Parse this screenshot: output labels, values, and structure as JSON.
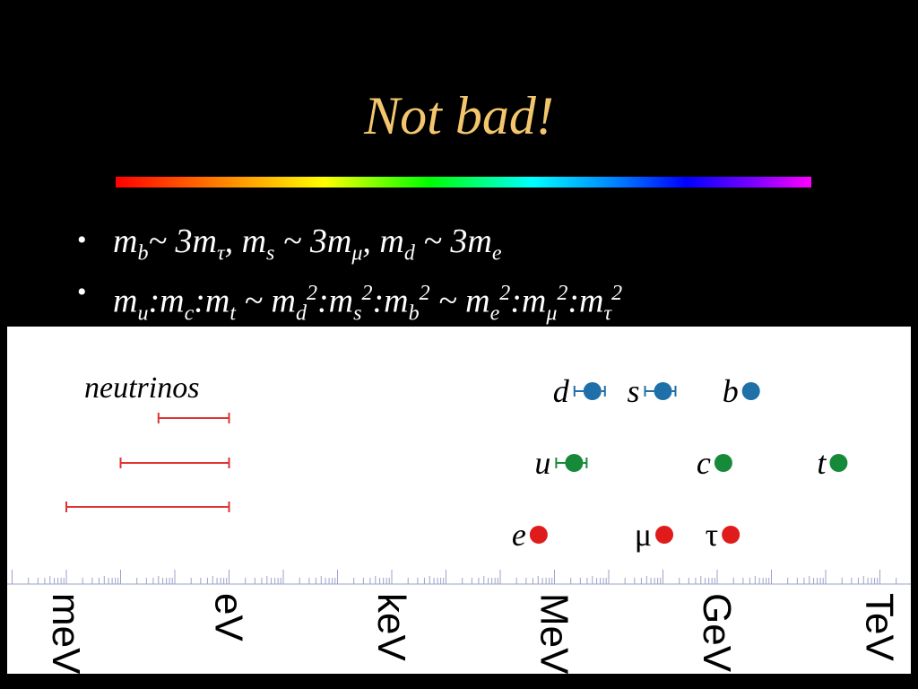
{
  "title": "Not bad!",
  "bullets": [
    {
      "marker": "•",
      "base": [
        "m",
        "~ 3m",
        ", m",
        " ~ 3m",
        ", m",
        " ~ 3m"
      ],
      "subs": [
        "b",
        "τ",
        "s",
        "μ",
        "d",
        "e"
      ]
    },
    {
      "marker": "•",
      "text": "mu:mc:mt ~ md2:ms2:mb2 ~ me2:mμ2:mτ2"
    }
  ],
  "chart_data": {
    "type": "scatter",
    "x_axis": {
      "scale": "log",
      "unit": "eV",
      "tick_labels": [
        "meV",
        "eV",
        "keV",
        "MeV",
        "GeV",
        "TeV"
      ]
    },
    "annotation": "neutrinos",
    "neutrino_ranges_eV": [
      {
        "min": 0.05,
        "max": 1
      },
      {
        "min": 0.01,
        "max": 1
      },
      {
        "min": 0.001,
        "max": 1
      }
    ],
    "series": [
      {
        "color": "#1f6fa8",
        "points": [
          {
            "label": "d",
            "value_eV": 5000000.0,
            "error": true
          },
          {
            "label": "s",
            "value_eV": 100000000.0,
            "error": true
          },
          {
            "label": "b",
            "value_eV": 4200000000.0,
            "error": false
          }
        ]
      },
      {
        "color": "#178a3a",
        "points": [
          {
            "label": "u",
            "value_eV": 2300000.0,
            "error": true
          },
          {
            "label": "c",
            "value_eV": 1300000000.0,
            "error": false
          },
          {
            "label": "t",
            "value_eV": 173000000000.0,
            "error": false
          }
        ]
      },
      {
        "color": "#e01b1b",
        "points": [
          {
            "label": "e",
            "value_eV": 511000.0,
            "error": false
          },
          {
            "label": "μ",
            "value_eV": 106000000.0,
            "error": false
          },
          {
            "label": "τ",
            "value_eV": 1780000000.0,
            "error": false
          }
        ]
      }
    ]
  }
}
